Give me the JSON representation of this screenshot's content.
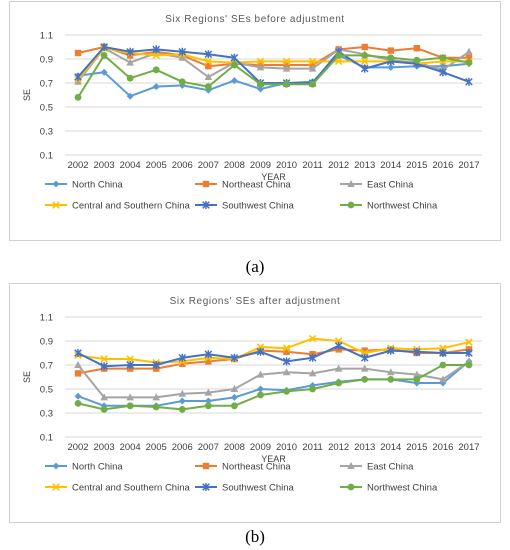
{
  "captions": [
    "(a)",
    "(b)"
  ],
  "chart_data": [
    {
      "type": "line",
      "title": "Six Regions' SEs before adjustment",
      "xlabel": "YEAR",
      "ylabel": "SE",
      "ylim": [
        0.1,
        1.1
      ],
      "yticks": [
        "0.1",
        "0.3",
        "0.5",
        "0.7",
        "0.9",
        "1.1"
      ],
      "grid": true,
      "legend": "bottom",
      "x": [
        "2002",
        "2003",
        "2004",
        "2005",
        "2006",
        "2007",
        "2008",
        "2009",
        "2010",
        "2011",
        "2012",
        "2013",
        "2014",
        "2015",
        "2016",
        "2017"
      ],
      "series": [
        {
          "name": "North China",
          "color": "#5b9bd5",
          "marker": "diamond",
          "values": [
            0.76,
            0.79,
            0.59,
            0.67,
            0.68,
            0.64,
            0.72,
            0.65,
            0.7,
            0.71,
            0.93,
            0.83,
            0.83,
            0.84,
            0.84,
            0.86
          ]
        },
        {
          "name": "Northeast China",
          "color": "#ed7d31",
          "marker": "square",
          "values": [
            0.95,
            1.0,
            0.93,
            0.96,
            0.93,
            0.84,
            0.86,
            0.85,
            0.85,
            0.85,
            0.98,
            1.0,
            0.97,
            0.99,
            0.91,
            0.91
          ]
        },
        {
          "name": "East China",
          "color": "#a5a5a5",
          "marker": "triangle",
          "values": [
            0.71,
            0.99,
            0.87,
            0.95,
            0.91,
            0.75,
            0.87,
            0.83,
            0.82,
            0.82,
            0.98,
            0.94,
            0.89,
            0.87,
            0.81,
            0.96
          ]
        },
        {
          "name": "Central and Southern China",
          "color": "#ffc000",
          "marker": "x",
          "values": [
            0.73,
            0.99,
            0.95,
            0.93,
            0.94,
            0.88,
            0.87,
            0.88,
            0.88,
            0.88,
            0.88,
            0.88,
            0.88,
            0.86,
            0.88,
            0.88
          ]
        },
        {
          "name": "Southwest China",
          "color": "#4472c4",
          "marker": "star",
          "values": [
            0.75,
            1.0,
            0.96,
            0.98,
            0.96,
            0.94,
            0.91,
            0.7,
            0.7,
            0.7,
            0.96,
            0.82,
            0.88,
            0.86,
            0.79,
            0.71
          ]
        },
        {
          "name": "Northwest China",
          "color": "#70ad47",
          "marker": "circle",
          "values": [
            0.58,
            0.93,
            0.74,
            0.81,
            0.71,
            0.67,
            0.85,
            0.69,
            0.69,
            0.69,
            0.93,
            0.93,
            0.91,
            0.89,
            0.91,
            0.87
          ]
        }
      ]
    },
    {
      "type": "line",
      "title": "Six Regions' SEs after adjustment",
      "xlabel": "YEAR",
      "ylabel": "SE",
      "ylim": [
        0.1,
        1.1
      ],
      "yticks": [
        "0.1",
        "0.3",
        "0.5",
        "0.7",
        "0.9",
        "1.1"
      ],
      "grid": true,
      "legend": "bottom",
      "x": [
        "2002",
        "2003",
        "2004",
        "2005",
        "2006",
        "2007",
        "2008",
        "2009",
        "2010",
        "2011",
        "2012",
        "2013",
        "2014",
        "2015",
        "2016",
        "2017"
      ],
      "series": [
        {
          "name": "North China",
          "color": "#5b9bd5",
          "marker": "diamond",
          "values": [
            0.44,
            0.36,
            0.36,
            0.36,
            0.4,
            0.4,
            0.43,
            0.5,
            0.49,
            0.53,
            0.56,
            0.58,
            0.58,
            0.55,
            0.55,
            0.73
          ]
        },
        {
          "name": "Northeast China",
          "color": "#ed7d31",
          "marker": "square",
          "values": [
            0.63,
            0.67,
            0.67,
            0.67,
            0.71,
            0.73,
            0.75,
            0.82,
            0.81,
            0.79,
            0.83,
            0.82,
            0.83,
            0.8,
            0.8,
            0.83
          ]
        },
        {
          "name": "East China",
          "color": "#a5a5a5",
          "marker": "triangle",
          "values": [
            0.7,
            0.43,
            0.43,
            0.43,
            0.46,
            0.47,
            0.5,
            0.62,
            0.64,
            0.63,
            0.67,
            0.67,
            0.64,
            0.62,
            0.58,
            0.73
          ]
        },
        {
          "name": "Central and Southern China",
          "color": "#ffc000",
          "marker": "x",
          "values": [
            0.78,
            0.75,
            0.75,
            0.72,
            0.73,
            0.76,
            0.75,
            0.85,
            0.84,
            0.92,
            0.9,
            0.8,
            0.84,
            0.83,
            0.84,
            0.89
          ]
        },
        {
          "name": "Southwest China",
          "color": "#4472c4",
          "marker": "star",
          "values": [
            0.8,
            0.69,
            0.7,
            0.7,
            0.76,
            0.79,
            0.76,
            0.81,
            0.73,
            0.76,
            0.86,
            0.76,
            0.82,
            0.81,
            0.8,
            0.8
          ]
        },
        {
          "name": "Northwest China",
          "color": "#70ad47",
          "marker": "circle",
          "values": [
            0.38,
            0.33,
            0.36,
            0.35,
            0.33,
            0.36,
            0.36,
            0.45,
            0.48,
            0.5,
            0.55,
            0.58,
            0.58,
            0.58,
            0.7,
            0.7
          ]
        }
      ]
    }
  ]
}
